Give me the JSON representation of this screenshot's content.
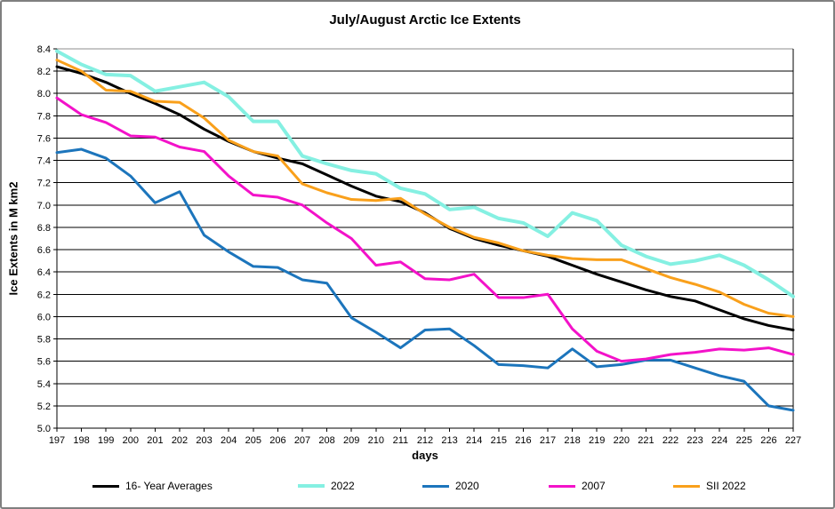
{
  "window": {
    "background": "#ffffff",
    "frame_border_color": "#7f7f7f",
    "gridline_color": "#000000",
    "plot_top_border_color": "#8c8c8c"
  },
  "chart_data": {
    "type": "line",
    "title": "July/August Arctic Ice Extents",
    "xlabel": "days",
    "ylabel": "Ice Extents in M km2",
    "xlim": [
      197,
      227
    ],
    "ylim": [
      5.0,
      8.4
    ],
    "y_tick_step": 0.2,
    "x_tick_step": 1,
    "grid": "horizontal",
    "legend_position": "bottom",
    "x": [
      197,
      198,
      199,
      200,
      201,
      202,
      203,
      204,
      205,
      206,
      207,
      208,
      209,
      210,
      211,
      212,
      213,
      214,
      215,
      216,
      217,
      218,
      219,
      220,
      221,
      222,
      223,
      224,
      225,
      226,
      227
    ],
    "series": [
      {
        "name": "16- Year Averages",
        "color": "#000000",
        "width": 3,
        "values": [
          8.24,
          8.18,
          8.1,
          8.0,
          7.91,
          7.81,
          7.68,
          7.57,
          7.48,
          7.42,
          7.37,
          7.27,
          7.17,
          7.08,
          7.03,
          6.93,
          6.79,
          6.7,
          6.64,
          6.59,
          6.54,
          6.46,
          6.38,
          6.31,
          6.24,
          6.18,
          6.14,
          6.06,
          5.98,
          5.92,
          5.88
        ]
      },
      {
        "name": "2022",
        "color": "#85F0E2",
        "width": 4,
        "values": [
          8.38,
          8.26,
          8.17,
          8.16,
          8.02,
          8.06,
          8.1,
          7.97,
          7.75,
          7.75,
          7.44,
          7.37,
          7.31,
          7.28,
          7.15,
          7.1,
          6.96,
          6.98,
          6.88,
          6.84,
          6.72,
          6.93,
          6.86,
          6.64,
          6.54,
          6.47,
          6.5,
          6.55,
          6.46,
          6.33,
          6.18
        ]
      },
      {
        "name": "2020",
        "color": "#1C75BC",
        "width": 3,
        "values": [
          7.47,
          7.5,
          7.42,
          7.26,
          7.02,
          7.12,
          6.73,
          6.58,
          6.45,
          6.44,
          6.33,
          6.3,
          5.99,
          5.86,
          5.72,
          5.88,
          5.89,
          5.74,
          5.57,
          5.56,
          5.54,
          5.71,
          5.55,
          5.57,
          5.61,
          5.61,
          5.54,
          5.47,
          5.42,
          5.2,
          5.16
        ]
      },
      {
        "name": "2007",
        "color": "#F312C9",
        "width": 3,
        "values": [
          7.96,
          7.81,
          7.74,
          7.62,
          7.61,
          7.52,
          7.48,
          7.26,
          7.09,
          7.07,
          7.0,
          6.84,
          6.7,
          6.46,
          6.49,
          6.34,
          6.33,
          6.38,
          6.17,
          6.17,
          6.2,
          5.89,
          5.69,
          5.6,
          5.62,
          5.66,
          5.68,
          5.71,
          5.7,
          5.72,
          5.66
        ]
      },
      {
        "name": "SII 2022",
        "color": "#F9A01B",
        "width": 3,
        "values": [
          8.3,
          8.2,
          8.03,
          8.02,
          7.93,
          7.92,
          7.78,
          7.58,
          7.48,
          7.44,
          7.19,
          7.11,
          7.05,
          7.04,
          7.06,
          6.92,
          6.8,
          6.71,
          6.66,
          6.59,
          6.55,
          6.52,
          6.51,
          6.51,
          6.43,
          6.35,
          6.29,
          6.22,
          6.11,
          6.03,
          6.0
        ]
      }
    ],
    "legend_item_lefts": [
      102,
      333,
      473,
      615,
      755
    ]
  },
  "layout_note": "y ticks labeled every 0.2 from 5.0 to 8.4; x ticks labeled every day 197-227"
}
